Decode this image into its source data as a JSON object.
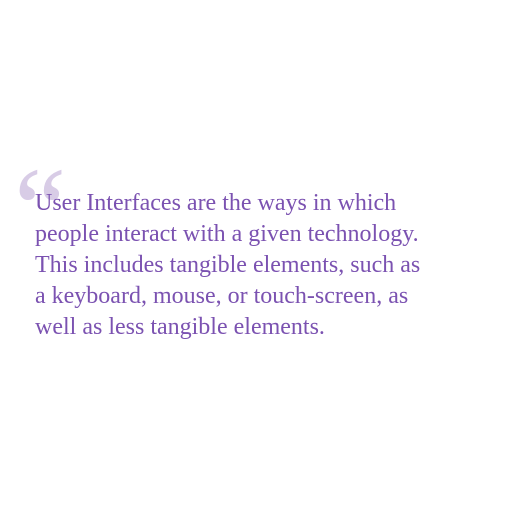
{
  "quote": {
    "mark": "“",
    "lines": [
      "User Interfaces are the ways in which",
      "people interact with a given technology.",
      "This includes tangible elements, such as",
      "a keyboard, mouse, or touch-screen, as",
      "well as less tangible elements."
    ]
  },
  "colors": {
    "background": "#ffffff",
    "text": "#7b52b1",
    "quote_mark": "#d8cce6"
  }
}
